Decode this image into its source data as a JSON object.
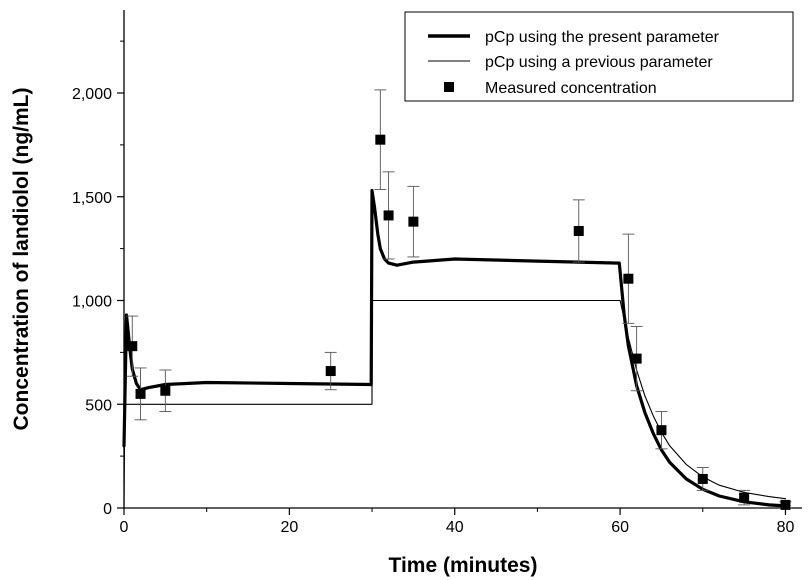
{
  "chart_data": {
    "type": "line",
    "xlabel": "Time (minutes)",
    "ylabel": "Concentration of landiolol (ng/mL)",
    "xlim": [
      0,
      82
    ],
    "ylim": [
      0,
      2400
    ],
    "x_ticks": [
      0,
      20,
      40,
      60,
      80
    ],
    "x_tick_labels": [
      "0",
      "20",
      "40",
      "60",
      "80"
    ],
    "y_ticks": [
      0,
      500,
      1000,
      1500,
      2000
    ],
    "y_tick_labels": [
      "0",
      "500",
      "1,000",
      "1,500",
      "2,000"
    ],
    "grid": false,
    "legend_position": "top-right",
    "series": [
      {
        "name": "pCp using the present parameter",
        "kind": "line",
        "style": "thick",
        "color": "#000000",
        "x": [
          0,
          0.3,
          0.7,
          1,
          1.5,
          2,
          3,
          5,
          10,
          20,
          29.9,
          30,
          30.3,
          30.7,
          31,
          31.5,
          32,
          33,
          35,
          40,
          50,
          59.9,
          60,
          60.5,
          61,
          62,
          63,
          64,
          65,
          66,
          68,
          70,
          72,
          75,
          78,
          80
        ],
        "y": [
          300,
          930,
          770,
          670,
          600,
          570,
          580,
          595,
          605,
          600,
          595,
          1530,
          1450,
          1320,
          1250,
          1200,
          1180,
          1170,
          1185,
          1200,
          1190,
          1180,
          1140,
          930,
          780,
          590,
          460,
          360,
          280,
          220,
          140,
          90,
          58,
          30,
          15,
          10
        ]
      },
      {
        "name": "pCp using a previous parameter",
        "kind": "line",
        "style": "thin",
        "color": "#000000",
        "x": [
          0,
          0.1,
          29.99,
          30,
          59.99,
          60,
          61,
          62,
          63,
          64,
          65,
          66,
          68,
          70,
          72,
          75,
          78,
          80
        ],
        "y": [
          0,
          500,
          500,
          1000,
          1000,
          1000,
          820,
          665,
          540,
          445,
          365,
          300,
          210,
          150,
          110,
          75,
          55,
          45
        ]
      },
      {
        "name": "Measured concentration",
        "kind": "scatter",
        "marker": "square",
        "color": "#000000",
        "x": [
          1,
          2,
          5,
          25,
          31,
          32,
          35,
          55,
          61,
          62,
          65,
          70,
          75,
          80
        ],
        "y": [
          780,
          550,
          565,
          660,
          1775,
          1410,
          1380,
          1335,
          1105,
          720,
          375,
          140,
          50,
          15
        ],
        "err": [
          145,
          125,
          100,
          90,
          240,
          210,
          170,
          150,
          215,
          155,
          90,
          55,
          35,
          15
        ]
      }
    ]
  }
}
